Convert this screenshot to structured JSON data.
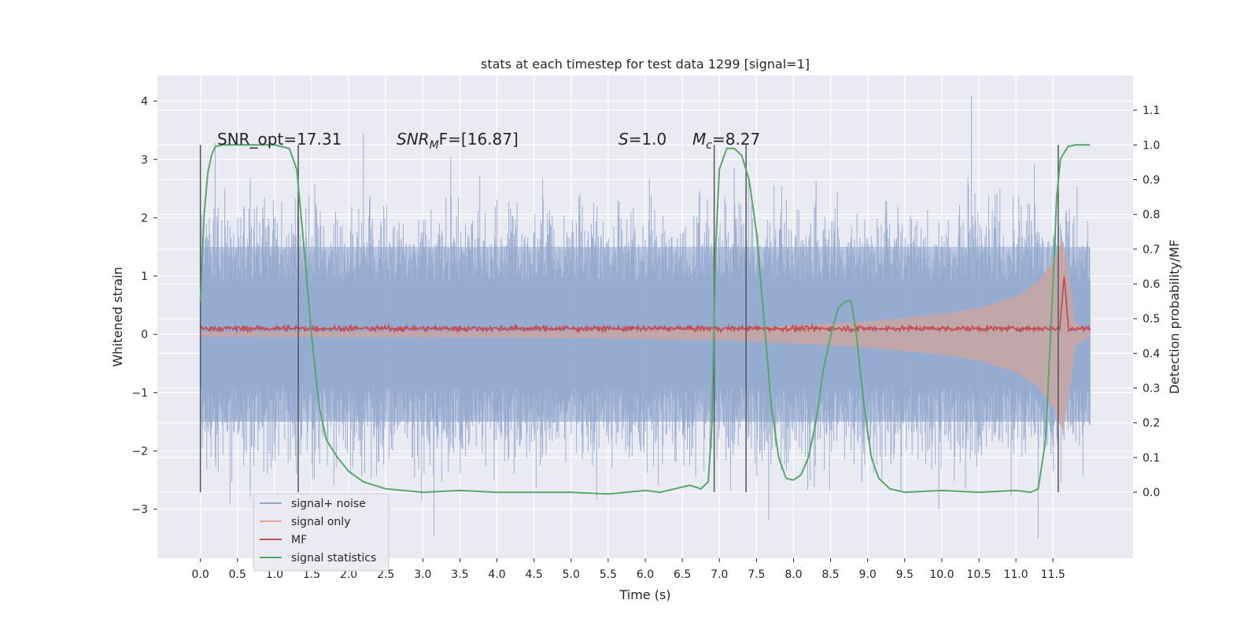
{
  "chart_data": {
    "type": "line",
    "title": "stats at each timestep for test data 1299 [signal=1]",
    "xlabel": "Time (s)",
    "ylabel": "Whitened strain",
    "ylabel_right": "Detection probability/MF",
    "xlim": [
      -0.58,
      12.58
    ],
    "ylim": [
      -3.84,
      4.44
    ],
    "ylim_right": [
      -0.19,
      1.2
    ],
    "x_ticks": [
      "0.0",
      "0.5",
      "1.0",
      "1.5",
      "2.0",
      "2.5",
      "3.0",
      "3.5",
      "4.0",
      "4.5",
      "5.0",
      "5.5",
      "6.0",
      "6.5",
      "7.0",
      "7.5",
      "8.0",
      "8.5",
      "9.0",
      "9.5",
      "10.0",
      "10.5",
      "11.0",
      "11.5"
    ],
    "y_ticks": [
      "−3",
      "−2",
      "−1",
      "0",
      "1",
      "2",
      "3",
      "4"
    ],
    "y_ticks_right": [
      "0.0",
      "0.1",
      "0.2",
      "0.3",
      "0.4",
      "0.5",
      "0.6",
      "0.7",
      "0.8",
      "0.9",
      "1.0",
      "1.1"
    ],
    "grid": true,
    "background": "#EAEAF2",
    "legend_position": "lower-left",
    "annotations": {
      "snr_opt": "SNR_opt=17.31",
      "snr_mf_sym": "SNR",
      "snr_mf_sub": "M",
      "snr_mf_tail": "F=[16.87]",
      "s_sym": "S",
      "s_tail": "=1.0",
      "mc_sym": "M",
      "mc_sub": "c",
      "mc_tail": "=8.27"
    },
    "vertical_markers_x": [
      0.0,
      1.32,
      6.93,
      7.36,
      11.57
    ],
    "series": [
      {
        "name": "signal+ noise",
        "axis": "left",
        "color": "#8FA6CE",
        "style": "dense noise band",
        "y_range_typical": [
          -2.0,
          2.0
        ],
        "peaks": [
          {
            "x": 0.2,
            "y": 3.28
          },
          {
            "x": 2.2,
            "y": 3.45
          },
          {
            "x": 10.4,
            "y": 4.1
          },
          {
            "x": 0.4,
            "y": -2.9
          },
          {
            "x": 3.15,
            "y": -3.45
          },
          {
            "x": 11.3,
            "y": -3.5
          }
        ]
      },
      {
        "name": "signal only",
        "axis": "left",
        "color": "#E5A88E",
        "envelope": [
          {
            "x": 0.0,
            "y": 0.04
          },
          {
            "x": 5.0,
            "y": 0.06
          },
          {
            "x": 7.0,
            "y": 0.1
          },
          {
            "x": 8.0,
            "y": 0.15
          },
          {
            "x": 9.0,
            "y": 0.22
          },
          {
            "x": 10.0,
            "y": 0.35
          },
          {
            "x": 10.5,
            "y": 0.45
          },
          {
            "x": 11.0,
            "y": 0.65
          },
          {
            "x": 11.3,
            "y": 0.9
          },
          {
            "x": 11.5,
            "y": 1.25
          },
          {
            "x": 11.63,
            "y": 1.65
          },
          {
            "x": 11.72,
            "y": 1.0
          },
          {
            "x": 11.8,
            "y": 0.2
          },
          {
            "x": 12.0,
            "y": 0.05
          }
        ]
      },
      {
        "name": "MF",
        "axis": "left",
        "color": "#C44E52",
        "baseline": 0.1,
        "noise_amplitude": 0.06,
        "peak": {
          "x": 11.65,
          "y": 1.0
        }
      },
      {
        "name": "signal statistics",
        "axis": "right",
        "color": "#55A868",
        "x": [
          0.0,
          0.05,
          0.1,
          0.15,
          0.2,
          0.3,
          0.5,
          0.8,
          1.0,
          1.2,
          1.3,
          1.4,
          1.5,
          1.6,
          1.7,
          1.85,
          2.0,
          2.2,
          2.5,
          3.0,
          3.5,
          4.0,
          5.0,
          5.5,
          6.0,
          6.2,
          6.4,
          6.6,
          6.75,
          6.85,
          6.9,
          6.95,
          7.0,
          7.1,
          7.2,
          7.3,
          7.4,
          7.5,
          7.6,
          7.7,
          7.8,
          7.9,
          8.0,
          8.1,
          8.2,
          8.3,
          8.4,
          8.5,
          8.6,
          8.7,
          8.78,
          8.85,
          8.95,
          9.05,
          9.15,
          9.3,
          9.5,
          10.0,
          10.5,
          11.0,
          11.2,
          11.3,
          11.4,
          11.5,
          11.55,
          11.6,
          11.7,
          11.8,
          11.9,
          12.0
        ],
        "values": [
          0.55,
          0.8,
          0.92,
          0.97,
          0.995,
          1.0,
          1.0,
          1.0,
          1.0,
          0.99,
          0.93,
          0.7,
          0.45,
          0.25,
          0.15,
          0.1,
          0.06,
          0.03,
          0.01,
          0.0,
          0.005,
          0.0,
          0.0,
          -0.005,
          0.005,
          0.0,
          0.01,
          0.02,
          0.01,
          0.03,
          0.2,
          0.7,
          0.93,
          0.99,
          0.99,
          0.97,
          0.9,
          0.75,
          0.5,
          0.25,
          0.1,
          0.04,
          0.035,
          0.05,
          0.1,
          0.2,
          0.35,
          0.45,
          0.53,
          0.55,
          0.55,
          0.45,
          0.25,
          0.1,
          0.04,
          0.01,
          0.0,
          0.005,
          0.0,
          0.005,
          0.0,
          0.01,
          0.15,
          0.6,
          0.85,
          0.96,
          0.995,
          1.0,
          1.0,
          1.0
        ]
      }
    ]
  }
}
